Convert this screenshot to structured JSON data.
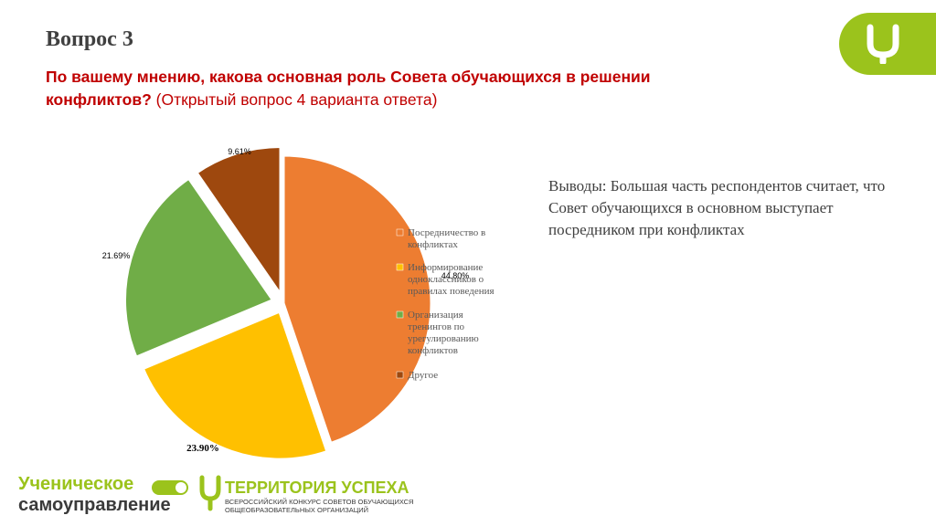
{
  "slide": {
    "title": "Вопрос 3",
    "question_main": "По вашему мнению, какова основная роль Совета обучающихся в решении конфликтов?",
    "question_note": " (Открытый вопрос 4 варианта ответа)",
    "conclusions": "Выводы: Большая часть респондентов считает, что Совет обучающихся в основном выступает посредником при конфликтах"
  },
  "chart_data": {
    "type": "pie",
    "categories": [
      "Посредничество в конфликтах",
      "Информирование одноклассников о правилах поведения",
      "Организация тренингов по урегулированию конфликтов",
      "Другое"
    ],
    "values": [
      44.8,
      23.9,
      21.69,
      9.61
    ],
    "data_labels": [
      "44.80%",
      "23.90%",
      "21.69%",
      "9.61%"
    ],
    "colors": [
      "#ed7d31",
      "#ffc000",
      "#70ad47",
      "#9e480e"
    ],
    "legend": "overlapping-right",
    "legend_lines": [
      [
        "Посредничество в",
        "конфликтах"
      ],
      [
        "Информирование",
        "одноклассников о",
        "правилах поведения"
      ],
      [
        "Организация",
        "тренингов по",
        "урегулированию",
        "конфликтов"
      ],
      [
        "Другое"
      ]
    ]
  },
  "branding": {
    "left_logo_line1": "Ученическое",
    "left_logo_line2": "самоуправление",
    "right_logo_title": "ТЕРРИТОРИЯ УСПЕХА",
    "right_logo_subtitle": "Всероссийский конкурс советов обучающихся общеобразовательных организаций",
    "brand_color": "#9bc31c"
  }
}
